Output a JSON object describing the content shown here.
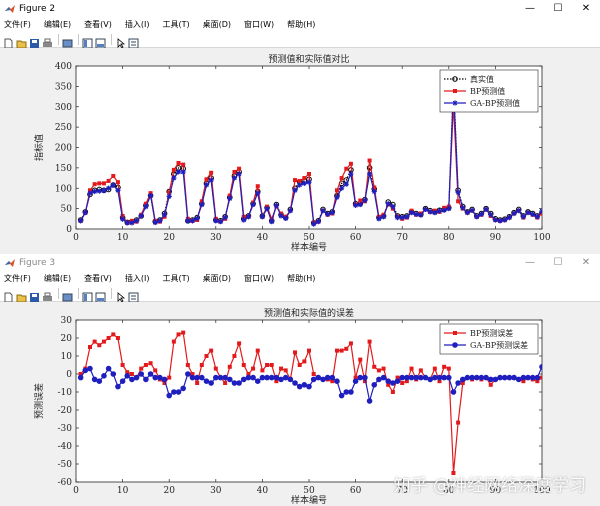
{
  "windows": [
    {
      "title": "Figure 2",
      "active": true
    },
    {
      "title": "Figure 3",
      "active": false
    }
  ],
  "menu": [
    "文件(F)",
    "编辑(E)",
    "查看(V)",
    "插入(I)",
    "工具(T)",
    "桌面(D)",
    "窗口(W)",
    "帮助(H)"
  ],
  "toolbar_icons": [
    "new-file-icon",
    "open-folder-icon",
    "save-icon",
    "print-icon",
    "print-preview-icon",
    "dock-figure-icon",
    "property-editor-icon",
    "pointer-icon",
    "edit-plot-icon"
  ],
  "watermark": "知乎 @神经网络深度学习",
  "chart_data": [
    {
      "type": "line",
      "title": "预测值和实际值对比",
      "xlabel": "样本编号",
      "ylabel": "指标值",
      "xlim": [
        0,
        100
      ],
      "ylim": [
        0,
        400
      ],
      "xticks": [
        0,
        10,
        20,
        30,
        40,
        50,
        60,
        70,
        80,
        90,
        100
      ],
      "yticks": [
        0,
        50,
        100,
        150,
        200,
        250,
        300,
        350,
        400
      ],
      "legend_position": "top-right",
      "series": [
        {
          "name": "真实值",
          "color": "#000000",
          "marker": "circle",
          "line": "dotted",
          "values": [
            22,
            42,
            85,
            95,
            97,
            95,
            97,
            108,
            102,
            28,
            16,
            18,
            22,
            32,
            58,
            82,
            18,
            22,
            38,
            92,
            135,
            150,
            148,
            20,
            22,
            28,
            62,
            112,
            125,
            22,
            20,
            30,
            78,
            130,
            140,
            25,
            32,
            62,
            92,
            32,
            52,
            20,
            60,
            35,
            28,
            48,
            100,
            115,
            118,
            122,
            15,
            20,
            48,
            38,
            42,
            82,
            112,
            120,
            145,
            62,
            62,
            72,
            150,
            98,
            28,
            32,
            66,
            60,
            32,
            30,
            32,
            42,
            38,
            36,
            50,
            45,
            42,
            46,
            48,
            52,
            360,
            95,
            55,
            42,
            48,
            32,
            38,
            50,
            38,
            25,
            22,
            24,
            30,
            40,
            48,
            32,
            42,
            38,
            32,
            40
          ]
        },
        {
          "name": "BP预测值",
          "color": "#e31a1c",
          "marker": "square",
          "line": "solid",
          "values": [
            20,
            40,
            95,
            110,
            112,
            112,
            118,
            130,
            115,
            32,
            15,
            20,
            18,
            35,
            62,
            88,
            20,
            18,
            30,
            90,
            145,
            162,
            158,
            25,
            20,
            22,
            68,
            122,
            138,
            25,
            18,
            25,
            82,
            140,
            148,
            30,
            30,
            65,
            105,
            30,
            55,
            25,
            55,
            38,
            30,
            45,
            120,
            118,
            125,
            135,
            15,
            18,
            45,
            35,
            38,
            95,
            125,
            148,
            160,
            60,
            70,
            68,
            168,
            102,
            30,
            35,
            60,
            50,
            30,
            25,
            28,
            45,
            35,
            38,
            48,
            42,
            45,
            42,
            52,
            55,
            305,
            68,
            50,
            40,
            45,
            30,
            35,
            48,
            32,
            22,
            20,
            22,
            28,
            38,
            45,
            28,
            40,
            35,
            28,
            38
          ]
        },
        {
          "name": "GA-BP预测值",
          "color": "#1f1fbf",
          "marker": "star",
          "line": "solid",
          "values": [
            20,
            40,
            88,
            92,
            93,
            94,
            100,
            108,
            95,
            24,
            15,
            15,
            20,
            32,
            55,
            82,
            16,
            20,
            35,
            80,
            125,
            140,
            140,
            20,
            20,
            26,
            60,
            108,
            120,
            20,
            18,
            28,
            75,
            125,
            135,
            22,
            30,
            60,
            88,
            30,
            50,
            18,
            58,
            32,
            26,
            45,
            95,
            108,
            112,
            115,
            12,
            18,
            45,
            36,
            40,
            78,
            100,
            110,
            135,
            58,
            60,
            70,
            135,
            92,
            25,
            30,
            62,
            55,
            28,
            28,
            30,
            40,
            36,
            34,
            48,
            42,
            40,
            44,
            46,
            50,
            350,
            90,
            52,
            40,
            46,
            30,
            36,
            48,
            35,
            22,
            20,
            22,
            28,
            38,
            45,
            30,
            40,
            36,
            30,
            44
          ]
        }
      ]
    },
    {
      "type": "line",
      "title": "预测值和实际值的误差",
      "xlabel": "样本编号",
      "ylabel": "预测误差",
      "xlim": [
        0,
        100
      ],
      "ylim": [
        -60,
        30
      ],
      "xticks": [
        0,
        10,
        20,
        30,
        40,
        50,
        60,
        70,
        80,
        90,
        100
      ],
      "yticks": [
        -60,
        -50,
        -40,
        -30,
        -20,
        -10,
        0,
        10,
        20,
        30
      ],
      "legend_position": "top-right",
      "series": [
        {
          "name": "BP预测误差",
          "color": "#e31a1c",
          "marker": "square",
          "line": "solid",
          "values": [
            0,
            3,
            15,
            18,
            16,
            18,
            20,
            22,
            20,
            5,
            1,
            0,
            -2,
            3,
            5,
            6,
            2,
            -3,
            -5,
            -2,
            18,
            22,
            23,
            5,
            0,
            -5,
            5,
            10,
            13,
            3,
            -2,
            -5,
            4,
            10,
            17,
            5,
            0,
            3,
            13,
            2,
            5,
            5,
            -4,
            3,
            2,
            -3,
            12,
            5,
            7,
            13,
            0,
            -2,
            -3,
            -3,
            -4,
            13,
            13,
            14,
            17,
            -2,
            8,
            -4,
            18,
            4,
            2,
            3,
            -6,
            -10,
            -2,
            -5,
            -4,
            3,
            -3,
            2,
            -2,
            -3,
            3,
            -4,
            4,
            3,
            -55,
            -27,
            -5,
            -2,
            -3,
            -2,
            -3,
            -2,
            -6,
            -3,
            -2,
            -2,
            -2,
            -2,
            -3,
            -4,
            -2,
            -3,
            -4,
            -2
          ]
        },
        {
          "name": "GA-BP预测误差",
          "color": "#1f1fbf",
          "marker": "circle",
          "line": "solid",
          "values": [
            -2,
            2,
            3,
            -3,
            -4,
            -1,
            3,
            0,
            -7,
            -4,
            -1,
            -3,
            -2,
            0,
            -3,
            0,
            -2,
            -2,
            -3,
            -12,
            -10,
            -10,
            -8,
            0,
            -2,
            -2,
            -2,
            -4,
            -5,
            -2,
            -2,
            -2,
            -3,
            -5,
            -5,
            -3,
            -2,
            -2,
            -4,
            -2,
            -2,
            -2,
            -2,
            -3,
            -2,
            -3,
            -5,
            -7,
            -6,
            -7,
            -3,
            -2,
            -3,
            -2,
            -2,
            -4,
            -12,
            -10,
            -10,
            -4,
            -2,
            -2,
            -15,
            -6,
            -3,
            -2,
            -4,
            -5,
            -4,
            -2,
            -2,
            -2,
            -2,
            -2,
            -2,
            -3,
            -2,
            -2,
            -2,
            -2,
            -10,
            -5,
            -3,
            -2,
            -2,
            -2,
            -2,
            -2,
            -3,
            -3,
            -2,
            -2,
            -2,
            -2,
            -3,
            -2,
            -2,
            -2,
            -2,
            4
          ]
        }
      ]
    }
  ]
}
